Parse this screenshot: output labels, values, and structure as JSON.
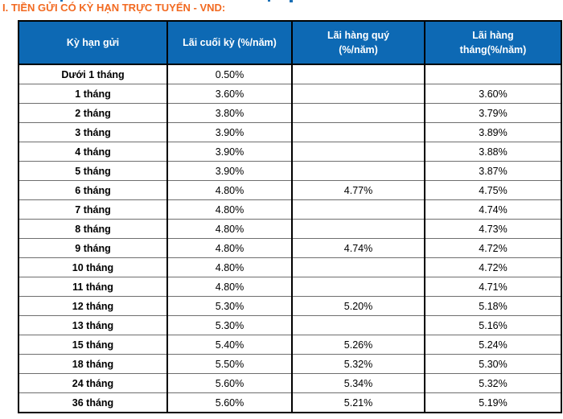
{
  "page": {
    "title": "I. TIỀN GỬI CÓ KỲ HẠN TRỰC TUYẾN - VND:",
    "title_color": "#F26A21"
  },
  "table": {
    "header_bg": "#0D69B4",
    "header_text_color": "#FFFFFF",
    "columns": [
      {
        "label": "Kỳ hạn gửi"
      },
      {
        "label": "Lãi cuối kỳ (%/năm)"
      },
      {
        "line1": "Lãi hàng quý",
        "line2": "(%/năm)"
      },
      {
        "line1": "Lãi hàng",
        "line2": "tháng(%/năm)"
      }
    ],
    "rows": [
      {
        "term": "Dưới 1 tháng",
        "end": "0.50%",
        "quarterly": "",
        "monthly": ""
      },
      {
        "term": "1 tháng",
        "end": "3.60%",
        "quarterly": "",
        "monthly": "3.60%"
      },
      {
        "term": "2 tháng",
        "end": "3.80%",
        "quarterly": "",
        "monthly": "3.79%"
      },
      {
        "term": "3 tháng",
        "end": "3.90%",
        "quarterly": "",
        "monthly": "3.89%"
      },
      {
        "term": "4 tháng",
        "end": "3.90%",
        "quarterly": "",
        "monthly": "3.88%"
      },
      {
        "term": "5 tháng",
        "end": "3.90%",
        "quarterly": "",
        "monthly": "3.87%"
      },
      {
        "term": "6 tháng",
        "end": "4.80%",
        "quarterly": "4.77%",
        "monthly": "4.75%"
      },
      {
        "term": "7 tháng",
        "end": "4.80%",
        "quarterly": "",
        "monthly": "4.74%"
      },
      {
        "term": "8 tháng",
        "end": "4.80%",
        "quarterly": "",
        "monthly": "4.73%"
      },
      {
        "term": "9 tháng",
        "end": "4.80%",
        "quarterly": "4.74%",
        "monthly": "4.72%"
      },
      {
        "term": "10 tháng",
        "end": "4.80%",
        "quarterly": "",
        "monthly": "4.72%"
      },
      {
        "term": "11 tháng",
        "end": "4.80%",
        "quarterly": "",
        "monthly": "4.71%"
      },
      {
        "term": "12 tháng",
        "end": "5.30%",
        "quarterly": "5.20%",
        "monthly": "5.18%"
      },
      {
        "term": "13 tháng",
        "end": "5.30%",
        "quarterly": "",
        "monthly": "5.16%"
      },
      {
        "term": "15 tháng",
        "end": "5.40%",
        "quarterly": "5.26%",
        "monthly": "5.24%"
      },
      {
        "term": "18 tháng",
        "end": "5.50%",
        "quarterly": "5.32%",
        "monthly": "5.30%"
      },
      {
        "term": "24 tháng",
        "end": "5.60%",
        "quarterly": "5.34%",
        "monthly": "5.32%"
      },
      {
        "term": "36 tháng",
        "end": "5.60%",
        "quarterly": "5.21%",
        "monthly": "5.19%"
      }
    ]
  }
}
